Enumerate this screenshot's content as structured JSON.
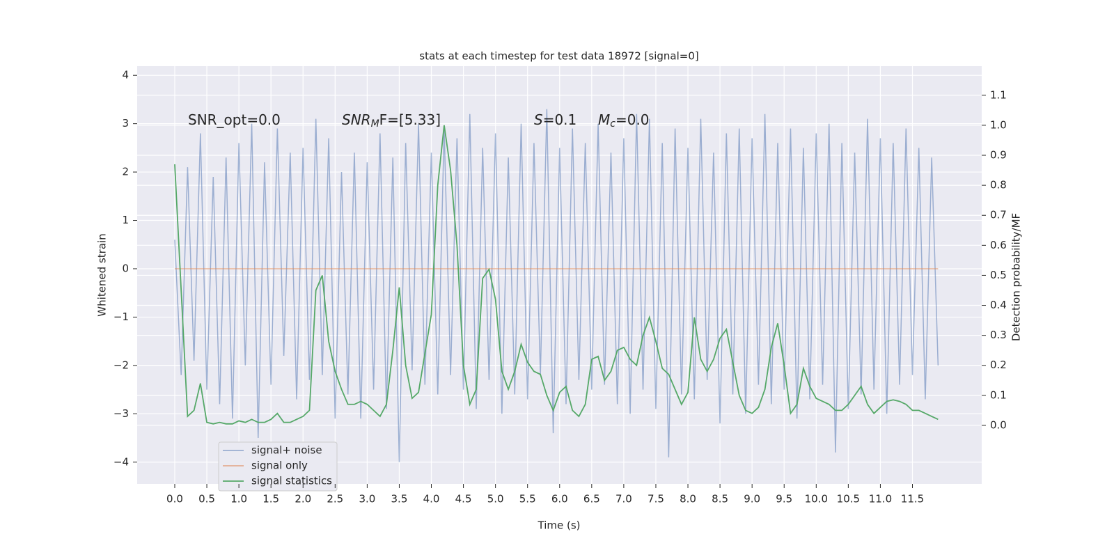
{
  "chart_data": {
    "type": "line",
    "title": "stats at each timestep for test data 18972 [signal=0]",
    "xlabel": "Time (s)",
    "ylabel": "Whitened strain",
    "y2label": "Detection probability/MF",
    "annotations": [
      {
        "text": "SNR_opt=0.0"
      },
      {
        "main": "SNR",
        "sub": "M",
        "tail": "F=[5.33]"
      },
      {
        "main": "S",
        "tail": "=0.1"
      },
      {
        "main": "M",
        "sub": "c",
        "tail": "=0.0"
      }
    ],
    "grid": true,
    "legend": "lower left",
    "xlim": [
      -0.586,
      12.58
    ],
    "ylim": [
      -4.45,
      4.19
    ],
    "y2lim": [
      -0.195,
      1.197
    ],
    "xticks": [
      {
        "value": 0,
        "label": "0.0"
      },
      {
        "value": 0.5,
        "label": "0.5"
      },
      {
        "value": 1,
        "label": "1.0"
      },
      {
        "value": 1.5,
        "label": "1.5"
      },
      {
        "value": 2,
        "label": "2.0"
      },
      {
        "value": 2.5,
        "label": "2.5"
      },
      {
        "value": 3,
        "label": "3.0"
      },
      {
        "value": 3.5,
        "label": "3.5"
      },
      {
        "value": 4,
        "label": "4.0"
      },
      {
        "value": 4.5,
        "label": "4.5"
      },
      {
        "value": 5,
        "label": "5.0"
      },
      {
        "value": 5.5,
        "label": "5.5"
      },
      {
        "value": 6,
        "label": "6.0"
      },
      {
        "value": 6.5,
        "label": "6.5"
      },
      {
        "value": 7,
        "label": "7.0"
      },
      {
        "value": 7.5,
        "label": "7.5"
      },
      {
        "value": 8,
        "label": "8.0"
      },
      {
        "value": 8.5,
        "label": "8.5"
      },
      {
        "value": 9,
        "label": "9.0"
      },
      {
        "value": 9.5,
        "label": "9.5"
      },
      {
        "value": 10,
        "label": "10.0"
      },
      {
        "value": 10.5,
        "label": "10.5"
      },
      {
        "value": 11,
        "label": "11.0"
      },
      {
        "value": 11.5,
        "label": "11.5"
      }
    ],
    "yticks": [
      {
        "value": -4,
        "label": "−4"
      },
      {
        "value": -3,
        "label": "−3"
      },
      {
        "value": -2,
        "label": "−2"
      },
      {
        "value": -1,
        "label": "−1"
      },
      0,
      1,
      2,
      3,
      4
    ],
    "y2ticks": [
      {
        "value": 0,
        "label": "0.0"
      },
      {
        "value": 0.1,
        "label": "0.1"
      },
      {
        "value": 0.2,
        "label": "0.2"
      },
      {
        "value": 0.3,
        "label": "0.3"
      },
      {
        "value": 0.4,
        "label": "0.4"
      },
      {
        "value": 0.5,
        "label": "0.5"
      },
      {
        "value": 0.6,
        "label": "0.6"
      },
      {
        "value": 0.7,
        "label": "0.7"
      },
      {
        "value": 0.8,
        "label": "0.8"
      },
      {
        "value": 0.9,
        "label": "0.9"
      },
      {
        "value": 1,
        "label": "1.0"
      },
      {
        "value": 1.1,
        "label": "1.1"
      }
    ],
    "x": [
      0,
      0.1,
      0.2,
      0.3,
      0.4,
      0.5,
      0.6,
      0.7,
      0.8,
      0.9,
      1,
      1.1,
      1.2,
      1.3,
      1.4,
      1.5,
      1.6,
      1.7,
      1.8,
      1.9,
      2,
      2.1,
      2.2,
      2.3,
      2.4,
      2.5,
      2.6,
      2.7,
      2.8,
      2.9,
      3,
      3.1,
      3.2,
      3.3,
      3.4,
      3.5,
      3.6,
      3.7,
      3.8,
      3.9,
      4,
      4.1,
      4.2,
      4.3,
      4.4,
      4.5,
      4.6,
      4.7,
      4.8,
      4.9,
      5,
      5.1,
      5.2,
      5.3,
      5.4,
      5.5,
      5.6,
      5.7,
      5.8,
      5.9,
      6,
      6.1,
      6.2,
      6.3,
      6.4,
      6.5,
      6.6,
      6.7,
      6.8,
      6.9,
      7,
      7.1,
      7.2,
      7.3,
      7.4,
      7.5,
      7.6,
      7.7,
      7.8,
      7.9,
      8,
      8.1,
      8.2,
      8.3,
      8.4,
      8.5,
      8.6,
      8.7,
      8.8,
      8.9,
      9,
      9.1,
      9.2,
      9.3,
      9.4,
      9.5,
      9.6,
      9.7,
      9.8,
      9.9,
      10,
      10.1,
      10.2,
      10.3,
      10.4,
      10.5,
      10.6,
      10.7,
      10.8,
      10.9,
      11,
      11.1,
      11.2,
      11.3,
      11.4,
      11.5,
      11.6,
      11.7,
      11.8,
      11.9
    ],
    "series": [
      {
        "name": "signal+ noise",
        "color": "#4c72b0",
        "opacity": 0.5,
        "values": [
          0.6,
          -2.2,
          2.1,
          -1.9,
          2.8,
          -2.5,
          1.9,
          -2.8,
          2.3,
          -3.1,
          2.6,
          -2.0,
          3.0,
          -3.5,
          2.2,
          -2.4,
          2.9,
          -1.8,
          2.4,
          -2.7,
          2.5,
          -2.3,
          3.1,
          -2.2,
          2.7,
          -3.1,
          2.0,
          -2.6,
          2.4,
          -3.1,
          2.2,
          -2.5,
          2.8,
          -2.9,
          2.3,
          -4.0,
          2.6,
          -2.1,
          3.0,
          -2.4,
          2.4,
          -2.6,
          2.9,
          -2.2,
          2.7,
          -2.5,
          3.2,
          -2.9,
          2.5,
          -2.3,
          2.8,
          -3.0,
          2.3,
          -2.6,
          3.0,
          -2.7,
          2.6,
          -2.2,
          3.3,
          -3.4,
          2.5,
          -2.8,
          2.9,
          -2.3,
          2.6,
          -2.5,
          3.0,
          -2.4,
          2.4,
          -2.8,
          2.7,
          -3.0,
          3.2,
          -2.5,
          3.1,
          -2.9,
          2.6,
          -3.9,
          2.9,
          -2.6,
          2.5,
          -2.7,
          3.1,
          -2.3,
          2.4,
          -3.2,
          2.8,
          -2.6,
          2.9,
          -3.0,
          2.7,
          -2.4,
          3.2,
          -2.8,
          2.6,
          -2.5,
          2.9,
          -3.1,
          2.5,
          -2.7,
          2.8,
          -2.4,
          3.0,
          -3.8,
          2.6,
          -2.9,
          2.4,
          -2.6,
          3.1,
          -2.5,
          2.7,
          -3.0,
          2.6,
          -2.4,
          2.9,
          -2.2,
          2.5,
          -2.7,
          2.3,
          -2.0
        ]
      },
      {
        "name": "signal only",
        "color": "#dd8452",
        "opacity": 0.6,
        "values": [
          0,
          0,
          0,
          0,
          0,
          0,
          0,
          0,
          0,
          0,
          0,
          0,
          0,
          0,
          0,
          0,
          0,
          0,
          0,
          0,
          0,
          0,
          0,
          0,
          0,
          0,
          0,
          0,
          0,
          0,
          0,
          0,
          0,
          0,
          0,
          0,
          0,
          0,
          0,
          0,
          0,
          0,
          0,
          0,
          0,
          0,
          0,
          0,
          0,
          0,
          0,
          0,
          0,
          0,
          0,
          0,
          0,
          0,
          0,
          0,
          0,
          0,
          0,
          0,
          0,
          0,
          0,
          0,
          0,
          0,
          0,
          0,
          0,
          0,
          0,
          0,
          0,
          0,
          0,
          0,
          0,
          0,
          0,
          0,
          0,
          0,
          0,
          0,
          0,
          0,
          0,
          0,
          0,
          0,
          0,
          0,
          0,
          0,
          0,
          0,
          0,
          0,
          0,
          0,
          0,
          0,
          0,
          0,
          0,
          0,
          0,
          0,
          0,
          0,
          0,
          0,
          0,
          0,
          0,
          0
        ]
      },
      {
        "name": "signal statistics",
        "color": "#55a868",
        "opacity": 1,
        "axis": "y2",
        "values": [
          0.87,
          0.45,
          0.03,
          0.05,
          0.14,
          0.01,
          0.005,
          0.01,
          0.005,
          0.005,
          0.015,
          0.01,
          0.02,
          0.01,
          0.01,
          0.02,
          0.04,
          0.01,
          0.01,
          0.02,
          0.03,
          0.05,
          0.45,
          0.5,
          0.28,
          0.18,
          0.12,
          0.07,
          0.07,
          0.08,
          0.07,
          0.05,
          0.03,
          0.07,
          0.25,
          0.46,
          0.2,
          0.09,
          0.11,
          0.24,
          0.37,
          0.8,
          1.0,
          0.85,
          0.6,
          0.2,
          0.07,
          0.12,
          0.49,
          0.52,
          0.42,
          0.18,
          0.12,
          0.18,
          0.27,
          0.21,
          0.18,
          0.17,
          0.1,
          0.05,
          0.11,
          0.13,
          0.05,
          0.03,
          0.07,
          0.22,
          0.23,
          0.15,
          0.18,
          0.25,
          0.26,
          0.22,
          0.2,
          0.3,
          0.36,
          0.28,
          0.19,
          0.17,
          0.12,
          0.07,
          0.11,
          0.36,
          0.22,
          0.18,
          0.22,
          0.29,
          0.32,
          0.21,
          0.1,
          0.05,
          0.04,
          0.06,
          0.12,
          0.26,
          0.34,
          0.2,
          0.04,
          0.07,
          0.19,
          0.13,
          0.09,
          0.08,
          0.07,
          0.05,
          0.05,
          0.07,
          0.1,
          0.13,
          0.07,
          0.04,
          0.06,
          0.08,
          0.085,
          0.08,
          0.07,
          0.05,
          0.05,
          0.04,
          0.03,
          0.02
        ]
      }
    ]
  }
}
